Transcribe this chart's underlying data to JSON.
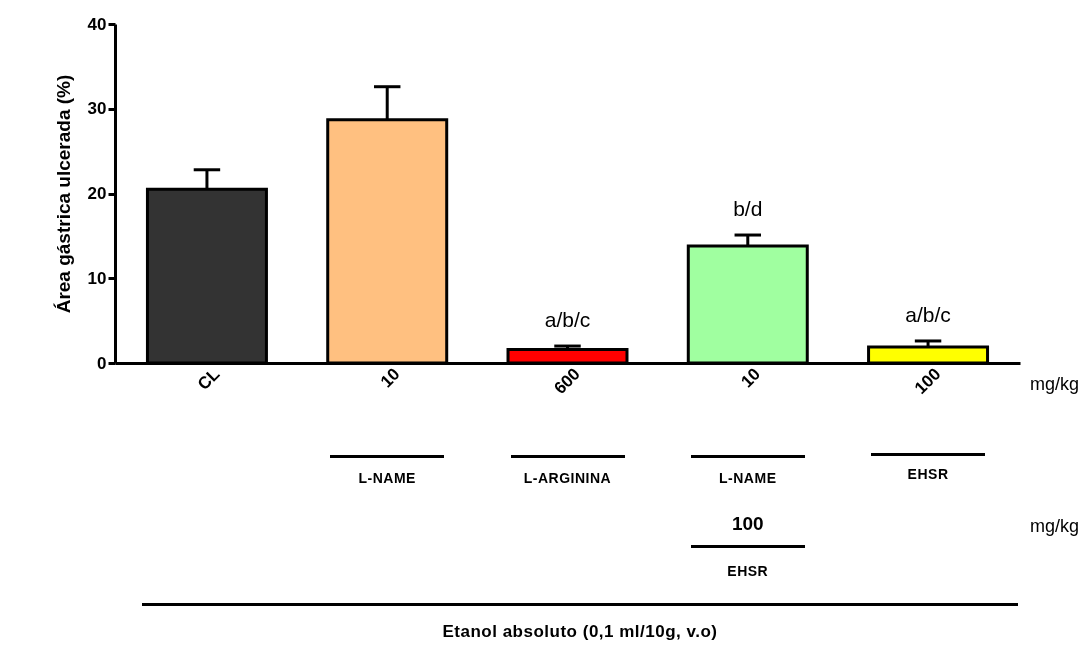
{
  "chart_data": {
    "type": "bar",
    "ylabel": "Área gástrica ulcerada (%)",
    "categories": [
      "CL",
      "10",
      "600",
      "10",
      "100"
    ],
    "values": [
      20.5,
      28.7,
      1.6,
      13.8,
      1.9
    ],
    "colors": [
      "#333333",
      "#ffc080",
      "#ff0000",
      "#a0ffa0",
      "#ffff00"
    ],
    "errors": [
      [
        20.5,
        22.8
      ],
      [
        28.7,
        32.6
      ],
      [
        1.6,
        2.0
      ],
      [
        13.8,
        15.1
      ],
      [
        1.9,
        2.6
      ]
    ],
    "ylim": [
      0,
      40
    ],
    "yticks": [
      0,
      10,
      20,
      30,
      40
    ],
    "grid": false,
    "annotations": [
      "a/b/c",
      "b/d",
      "a/b/c",
      "mg/kg",
      "L-NAME",
      "L-ARGININA",
      "L-NAME",
      "EHSR",
      "mg/kg",
      "100",
      "EHSR",
      "Etanol absoluto (0,1 ml/10g, v.o)"
    ]
  }
}
